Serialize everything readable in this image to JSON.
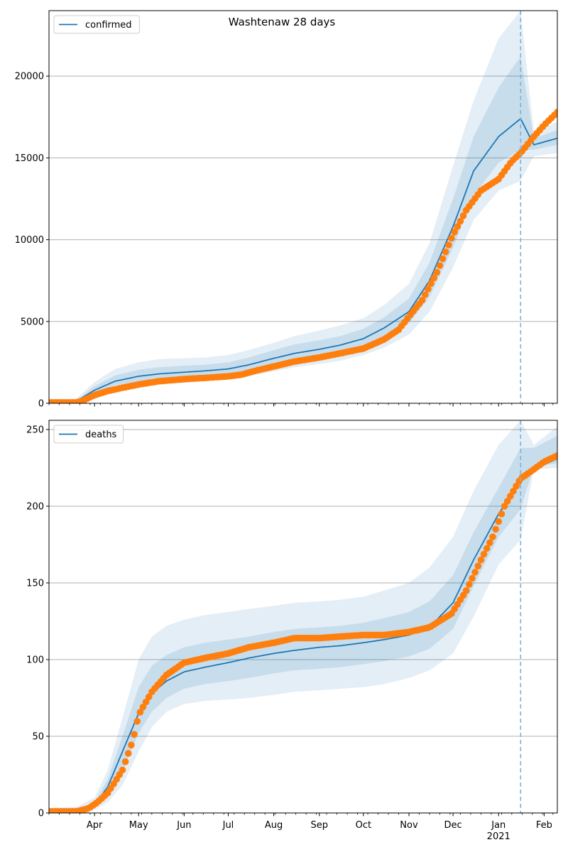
{
  "figure": {
    "title": "Washtenaw 28 days"
  },
  "colors": {
    "model": "#1f77b4",
    "observed": "#ff7f0e",
    "band": "#1f77b4",
    "grid": "#b0b0b0",
    "forecast_line": "#7fb3d5"
  },
  "chart_data": [
    {
      "type": "line",
      "legend_label": "confirmed",
      "legend_position": "top-left",
      "grid": "horizontal",
      "x_range": [
        "2020-03-01",
        "2021-02-10"
      ],
      "ylim": [
        0,
        24000
      ],
      "yticks": [
        0,
        5000,
        10000,
        15000,
        20000
      ],
      "forecast_start": "2021-01-16",
      "model": {
        "x": [
          "2020-03-01",
          "2020-03-18",
          "2020-04-01",
          "2020-04-15",
          "2020-05-01",
          "2020-05-15",
          "2020-06-01",
          "2020-06-15",
          "2020-07-01",
          "2020-07-15",
          "2020-08-01",
          "2020-08-15",
          "2020-09-01",
          "2020-09-15",
          "2020-10-01",
          "2020-10-15",
          "2020-11-01",
          "2020-11-15",
          "2020-12-01",
          "2020-12-15",
          "2021-01-01",
          "2021-01-16",
          "2021-01-25",
          "2021-02-10"
        ],
        "y": [
          0,
          30,
          800,
          1350,
          1650,
          1800,
          1900,
          1980,
          2100,
          2350,
          2750,
          3050,
          3300,
          3550,
          3950,
          4600,
          5600,
          7500,
          10800,
          14200,
          16300,
          17400,
          15800,
          16200
        ],
        "band_outer": {
          "lo": [
            0,
            0,
            400,
            800,
            1000,
            1150,
            1250,
            1350,
            1450,
            1650,
            1950,
            2200,
            2400,
            2600,
            2950,
            3400,
            4200,
            5600,
            8300,
            11200,
            13000,
            13600,
            15100,
            15300
          ],
          "hi": [
            0,
            150,
            1300,
            2100,
            2500,
            2700,
            2750,
            2800,
            2950,
            3250,
            3700,
            4100,
            4450,
            4750,
            5200,
            6000,
            7300,
            9800,
            14500,
            18500,
            22300,
            24000,
            16600,
            17200
          ]
        },
        "band_inner": {
          "lo": [
            0,
            10,
            600,
            1100,
            1350,
            1500,
            1600,
            1700,
            1800,
            2000,
            2350,
            2650,
            2850,
            3050,
            3450,
            4000,
            4900,
            6500,
            9500,
            12700,
            14700,
            15500,
            15500,
            15800
          ],
          "hi": [
            0,
            80,
            1050,
            1700,
            2050,
            2200,
            2300,
            2350,
            2500,
            2800,
            3250,
            3600,
            3850,
            4100,
            4550,
            5250,
            6400,
            8600,
            12500,
            16300,
            19300,
            21200,
            16200,
            16700
          ]
        }
      },
      "observed": {
        "x": [
          "2020-03-01",
          "2020-03-20",
          "2020-03-25",
          "2020-04-01",
          "2020-04-10",
          "2020-04-20",
          "2020-05-01",
          "2020-05-15",
          "2020-06-01",
          "2020-06-15",
          "2020-07-01",
          "2020-07-10",
          "2020-07-20",
          "2020-08-01",
          "2020-08-15",
          "2020-09-01",
          "2020-09-15",
          "2020-10-01",
          "2020-10-15",
          "2020-10-25",
          "2020-11-01",
          "2020-11-10",
          "2020-11-20",
          "2020-12-01",
          "2020-12-10",
          "2020-12-20",
          "2021-01-01",
          "2021-01-10",
          "2021-01-16",
          "2021-01-25",
          "2021-02-01",
          "2021-02-10"
        ],
        "y": [
          50,
          50,
          200,
          500,
          750,
          950,
          1150,
          1350,
          1480,
          1550,
          1650,
          1750,
          2000,
          2250,
          2550,
          2800,
          3050,
          3350,
          3900,
          4500,
          5300,
          6300,
          8000,
          10300,
          11800,
          13000,
          13700,
          14800,
          15300,
          16300,
          17000,
          17800
        ]
      }
    },
    {
      "type": "line",
      "legend_label": "deaths",
      "legend_position": "top-left",
      "grid": "horizontal",
      "x_range": [
        "2020-03-01",
        "2021-02-10"
      ],
      "ylim": [
        0,
        256
      ],
      "yticks": [
        0,
        50,
        100,
        150,
        200,
        250
      ],
      "forecast_start": "2021-01-16",
      "xticks": [
        "Apr",
        "May",
        "Jun",
        "Jul",
        "Aug",
        "Sep",
        "Oct",
        "Nov",
        "Dec",
        "Jan",
        "Feb"
      ],
      "xtick_year": "2021",
      "model": {
        "x": [
          "2020-03-01",
          "2020-03-20",
          "2020-04-01",
          "2020-04-10",
          "2020-04-20",
          "2020-05-01",
          "2020-05-10",
          "2020-05-20",
          "2020-06-01",
          "2020-06-15",
          "2020-07-01",
          "2020-07-15",
          "2020-08-01",
          "2020-08-15",
          "2020-09-01",
          "2020-09-15",
          "2020-10-01",
          "2020-10-15",
          "2020-11-01",
          "2020-11-15",
          "2020-12-01",
          "2020-12-15",
          "2021-01-01",
          "2021-01-16",
          "2021-01-25",
          "2021-02-10"
        ],
        "y": [
          0,
          1,
          5,
          17,
          40,
          65,
          78,
          86,
          92,
          95,
          98,
          101,
          104,
          106,
          108,
          109,
          111,
          113,
          116,
          121,
          137,
          165,
          195,
          216,
          224,
          231
        ],
        "band_outer": {
          "lo": [
            0,
            0,
            2,
            7,
            18,
            40,
            56,
            66,
            71,
            73,
            74,
            75,
            77,
            79,
            80,
            81,
            82,
            84,
            88,
            93,
            104,
            128,
            162,
            178,
            224,
            225
          ],
          "hi": [
            3,
            4,
            10,
            28,
            62,
            100,
            115,
            122,
            126,
            129,
            131,
            133,
            135,
            137,
            138,
            139,
            141,
            145,
            150,
            160,
            180,
            210,
            240,
            256,
            240,
            252
          ]
        },
        "band_inner": {
          "lo": [
            0,
            0,
            3,
            11,
            27,
            52,
            66,
            75,
            81,
            84,
            86,
            88,
            91,
            93,
            94,
            95,
            97,
            99,
            102,
            107,
            120,
            148,
            180,
            198,
            226,
            228
          ],
          "hi": [
            2,
            2,
            7,
            22,
            50,
            82,
            96,
            103,
            108,
            111,
            113,
            115,
            118,
            120,
            121,
            122,
            124,
            127,
            131,
            138,
            155,
            183,
            212,
            238,
            238,
            246
          ]
        }
      },
      "observed": {
        "x": [
          "2020-03-01",
          "2020-03-20",
          "2020-03-28",
          "2020-04-03",
          "2020-04-10",
          "2020-04-20",
          "2020-04-27",
          "2020-05-01",
          "2020-05-10",
          "2020-05-20",
          "2020-06-01",
          "2020-06-15",
          "2020-07-01",
          "2020-07-15",
          "2020-08-01",
          "2020-08-15",
          "2020-09-01",
          "2020-09-15",
          "2020-10-01",
          "2020-10-15",
          "2020-11-01",
          "2020-11-15",
          "2020-11-30",
          "2020-12-10",
          "2020-12-20",
          "2020-12-28",
          "2021-01-05",
          "2021-01-16",
          "2021-01-25",
          "2021-02-01",
          "2021-02-10"
        ],
        "y": [
          1,
          1,
          3,
          7,
          13,
          28,
          47,
          64,
          79,
          90,
          98,
          101,
          104,
          108,
          111,
          114,
          114,
          115,
          116,
          116,
          118,
          121,
          130,
          145,
          165,
          180,
          200,
          218,
          224,
          229,
          233
        ]
      }
    }
  ]
}
